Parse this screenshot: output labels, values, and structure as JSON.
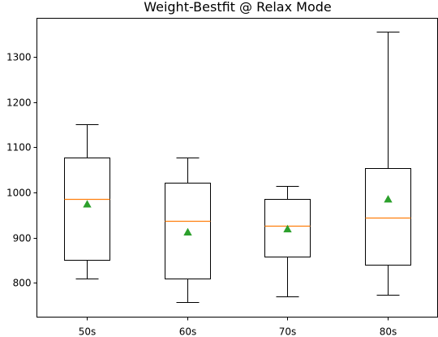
{
  "chart_data": {
    "type": "box",
    "title": "Weight-Bestfit @ Relax Mode",
    "xlabel": "",
    "ylabel": "",
    "categories": [
      "50s",
      "60s",
      "70s",
      "80s"
    ],
    "boxes": [
      {
        "category": "50s",
        "whisker_low": 810,
        "q1": 851,
        "median": 985,
        "q3": 1078,
        "whisker_high": 1152,
        "mean": 974
      },
      {
        "category": "60s",
        "whisker_low": 757,
        "q1": 810,
        "median": 938,
        "q3": 1022,
        "whisker_high": 1078,
        "mean": 912
      },
      {
        "category": "70s",
        "whisker_low": 769,
        "q1": 858,
        "median": 926,
        "q3": 985,
        "whisker_high": 1015,
        "mean": 919
      },
      {
        "category": "80s",
        "whisker_low": 774,
        "q1": 840,
        "median": 944,
        "q3": 1055,
        "whisker_high": 1357,
        "mean": 985
      }
    ],
    "y_ticks": [
      800,
      900,
      1000,
      1100,
      1200,
      1300
    ],
    "ylim": [
      724,
      1386
    ],
    "grid": false,
    "legend": "none",
    "colors": {
      "box": "#000000",
      "median": "#ff7f0e",
      "mean": "#2ca02c",
      "background": "#ffffff"
    }
  }
}
